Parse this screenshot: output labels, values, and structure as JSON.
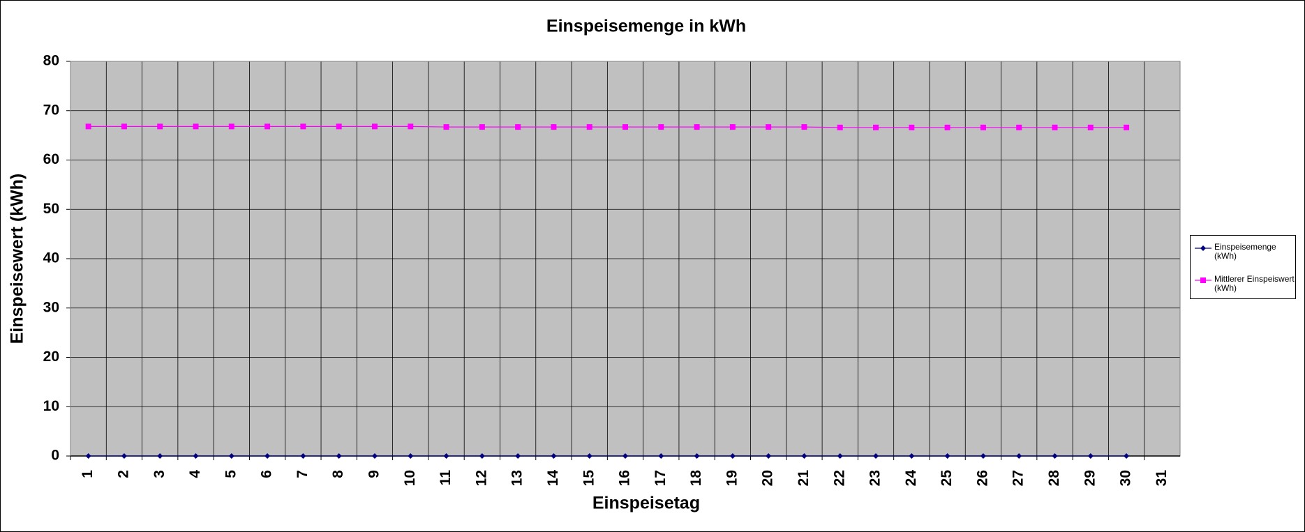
{
  "chart_data": {
    "type": "line",
    "title": "Einspeisemenge in kWh",
    "xlabel": "Einspeisetag",
    "ylabel": "Einspeisewert  (kWh)",
    "categories": [
      "1",
      "2",
      "3",
      "4",
      "5",
      "6",
      "7",
      "8",
      "9",
      "10",
      "11",
      "12",
      "13",
      "14",
      "15",
      "16",
      "17",
      "18",
      "19",
      "20",
      "21",
      "22",
      "23",
      "24",
      "25",
      "26",
      "27",
      "28",
      "29",
      "30",
      "31"
    ],
    "series": [
      {
        "name": "Einspeisemenge (kWh)",
        "color": "#000080",
        "marker": "diamond",
        "values": [
          0,
          0,
          0,
          0,
          0,
          0,
          0,
          0,
          0,
          0,
          0,
          0,
          0,
          0,
          0,
          0,
          0,
          0,
          0,
          0,
          0,
          0,
          0,
          0,
          0,
          0,
          0,
          0,
          0,
          0,
          null
        ]
      },
      {
        "name": "Mittlerer Einspeiswert (kWh)",
        "color": "#ff00ff",
        "marker": "square",
        "values": [
          66.8,
          66.8,
          66.8,
          66.8,
          66.8,
          66.8,
          66.8,
          66.8,
          66.8,
          66.8,
          66.7,
          66.7,
          66.7,
          66.7,
          66.7,
          66.7,
          66.7,
          66.7,
          66.7,
          66.7,
          66.7,
          66.6,
          66.6,
          66.6,
          66.6,
          66.6,
          66.6,
          66.6,
          66.6,
          66.6,
          null
        ]
      }
    ],
    "ylim": [
      0,
      80
    ],
    "yticks": [
      0,
      10,
      20,
      30,
      40,
      50,
      60,
      70,
      80
    ],
    "grid": true,
    "legend": "right"
  }
}
